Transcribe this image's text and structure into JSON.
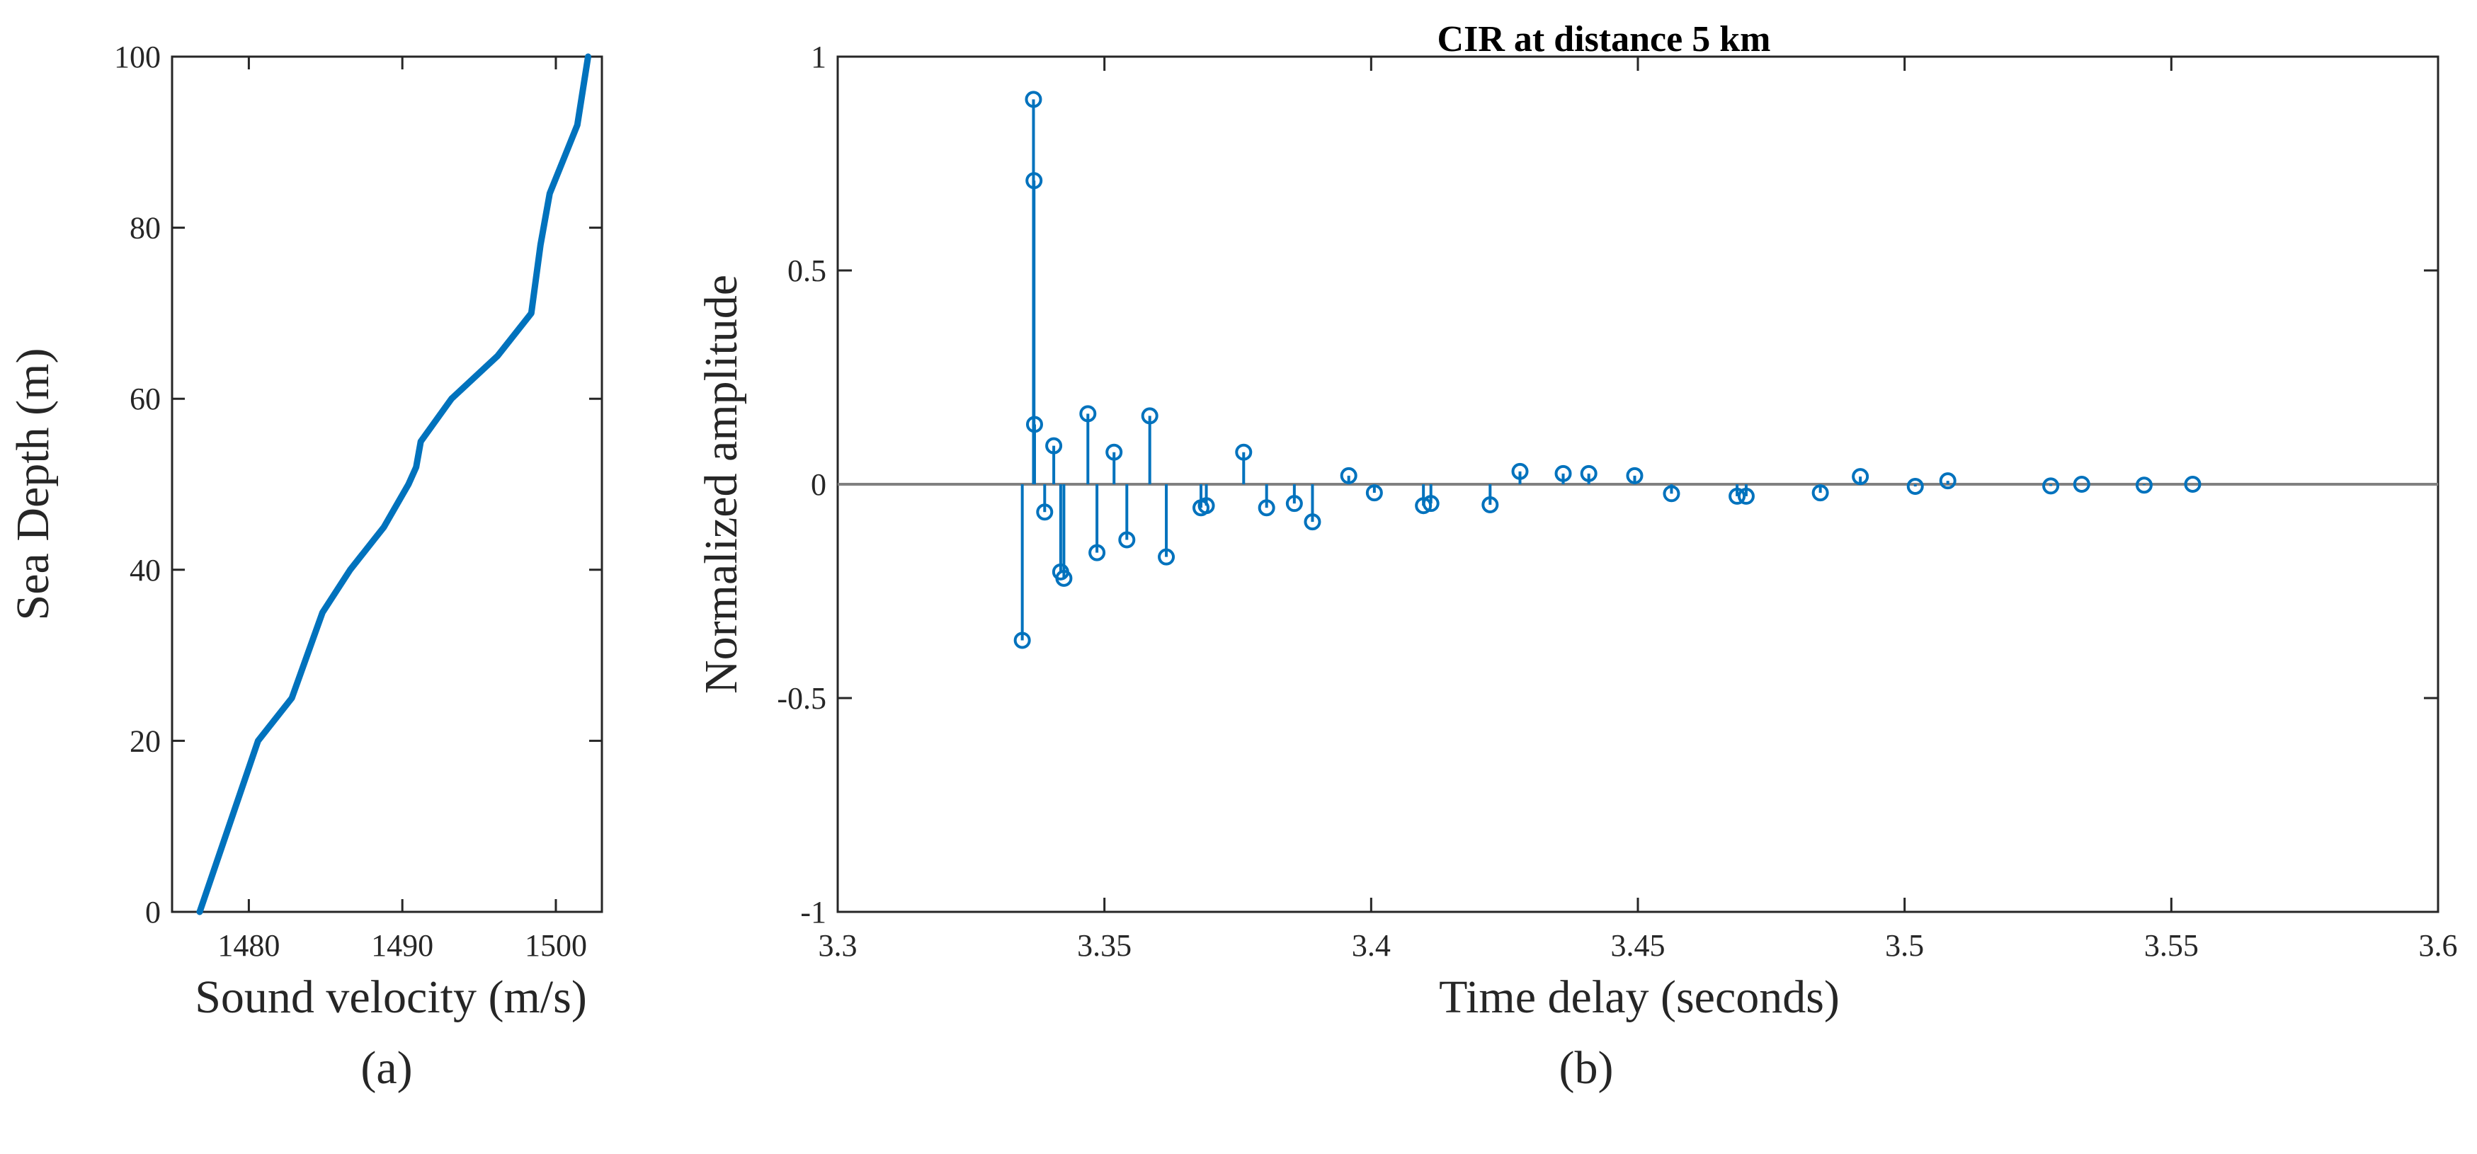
{
  "colors": {
    "series": "#0072BD",
    "axis": "#262626",
    "baseline": "#808080"
  },
  "chart_data": [
    {
      "type": "line",
      "title": "",
      "xlabel": "Sound velocity (m/s)",
      "ylabel": "Sea Depth (m)",
      "caption": "(a)",
      "xlim": [
        1475,
        1503
      ],
      "ylim": [
        0,
        100
      ],
      "xticks": [
        1480,
        1490,
        1500
      ],
      "yticks": [
        0,
        20,
        40,
        60,
        80,
        100
      ],
      "x": [
        1476.8,
        1480.6,
        1482.8,
        1484.8,
        1486.6,
        1488.8,
        1490.4,
        1490.9,
        1491.2,
        1493.2,
        1496.2,
        1498.4,
        1499.0,
        1499.6,
        1500.5,
        1501.4,
        1502.1
      ],
      "y": [
        0,
        20,
        25,
        35,
        40,
        45,
        50,
        52,
        55,
        60,
        65,
        70,
        78,
        84,
        88,
        92,
        100
      ]
    },
    {
      "type": "stem",
      "title": "CIR at distance 5 km",
      "xlabel": "Time delay (seconds)",
      "ylabel": "Normalized amplitude",
      "caption": "(b)",
      "xlim": [
        3.3,
        3.6
      ],
      "ylim": [
        -1,
        1
      ],
      "xticks": [
        3.3,
        3.35,
        3.4,
        3.45,
        3.5,
        3.55,
        3.6
      ],
      "xtick_labels": [
        "3.3",
        "3.35",
        "3.4",
        "3.45",
        "3.5",
        "3.55",
        "3.6"
      ],
      "yticks": [
        -1,
        -0.5,
        0,
        0.5,
        1
      ],
      "ytick_labels": [
        "-1",
        "-0.5",
        "0",
        "0.5",
        "1"
      ],
      "x": [
        3.3346,
        3.3367,
        3.3368,
        3.3369,
        3.3388,
        3.3405,
        3.3418,
        3.3424,
        3.3469,
        3.3486,
        3.3518,
        3.3542,
        3.3585,
        3.3616,
        3.3681,
        3.3691,
        3.3761,
        3.3804,
        3.3856,
        3.389,
        3.3958,
        3.4006,
        3.4098,
        3.4112,
        3.4223,
        3.4279,
        3.436,
        3.4408,
        3.4494,
        3.4563,
        3.4686,
        3.4703,
        3.4842,
        3.4917,
        3.502,
        3.5081,
        3.5274,
        3.5332,
        3.5449,
        3.554
      ],
      "y": [
        -0.365,
        0.9,
        0.71,
        0.14,
        -0.065,
        0.09,
        -0.205,
        -0.22,
        0.165,
        -0.16,
        0.075,
        -0.13,
        0.16,
        -0.17,
        -0.055,
        -0.05,
        0.075,
        -0.055,
        -0.045,
        -0.088,
        0.02,
        -0.02,
        -0.05,
        -0.045,
        -0.048,
        0.03,
        0.025,
        0.025,
        0.02,
        -0.022,
        -0.028,
        -0.028,
        -0.02,
        0.018,
        -0.005,
        0.008,
        -0.004,
        0.0,
        -0.002,
        0.0
      ]
    }
  ]
}
